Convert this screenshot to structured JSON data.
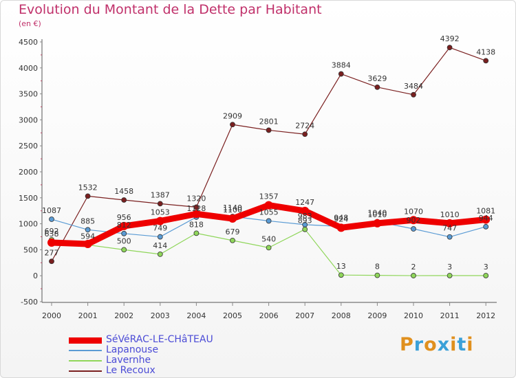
{
  "title": "Evolution du Montant de la Dette par Habitant",
  "subtitle": "(en €)",
  "logo": {
    "text": "Proxiti",
    "colors": [
      "#e0901e",
      "#3aa0d8",
      "#e0901e",
      "#3aa0d8",
      "#e0901e",
      "#3aa0d8",
      "#e0901e"
    ]
  },
  "chart_data": {
    "type": "line",
    "title": "Evolution du Montant de la Dette par Habitant",
    "subtitle": "(en €)",
    "xlabel": "",
    "ylabel": "",
    "x": [
      2000,
      2001,
      2002,
      2003,
      2004,
      2005,
      2006,
      2007,
      2008,
      2009,
      2010,
      2011,
      2012
    ],
    "yticks": [
      -500,
      0,
      500,
      1000,
      1500,
      2000,
      2500,
      3000,
      3500,
      4000,
      4500
    ],
    "ylim": [
      -500,
      4500
    ],
    "grid": false,
    "legend_position": "bottom-left",
    "series": [
      {
        "name": "Le Recoux",
        "color": "#7a1f1f",
        "width": 1.2,
        "values": [
          277,
          1532,
          1458,
          1387,
          1320,
          2909,
          2801,
          2724,
          3884,
          3629,
          3484,
          4392,
          4138
        ]
      },
      {
        "name": "Lapanouse",
        "color": "#5a9bd4",
        "width": 1.2,
        "values": [
          1087,
          885,
          812,
          749,
          1128,
          1140,
          1055,
          983,
          948,
          1040,
          902,
          747,
          944
        ]
      },
      {
        "name": "Lavernhe",
        "color": "#8fd65a",
        "width": 1.2,
        "values": [
          692,
          594,
          500,
          414,
          818,
          679,
          540,
          893,
          13,
          8,
          2,
          3,
          3
        ]
      },
      {
        "name": "SéVéRAC-LE-CHâTEAU",
        "color": "#ee0000",
        "width": 9,
        "values": [
          638,
          611,
          956,
          1053,
          1190,
          1100,
          1357,
          1247,
          924,
          1010,
          1070,
          1010,
          1081
        ]
      }
    ],
    "data_labels": [
      {
        "series": "Le Recoux",
        "labels": [
          "277",
          "1532",
          "1458",
          "1387",
          "1320",
          "2909",
          "2801",
          "2724",
          "3884",
          "3629",
          "3484",
          "4392",
          "4138"
        ]
      },
      {
        "series": "Lapanouse",
        "labels": [
          "1087",
          "885",
          "812",
          "749",
          "1128",
          "1140",
          "1055",
          "983",
          "948",
          "1040",
          "902",
          "747",
          "944"
        ]
      },
      {
        "series": "Lavernhe",
        "labels": [
          "692",
          "594",
          "500",
          "414",
          "818",
          "679",
          "540",
          "893",
          "13",
          "8",
          "2",
          "3",
          "3"
        ]
      },
      {
        "series": "SéVéRAC-LE-CHâTEAU",
        "labels": [
          "638",
          "",
          "956",
          "1053",
          "",
          "1100",
          "1357",
          "1247",
          "924",
          "1010",
          "1070",
          "1010",
          "1081"
        ]
      }
    ]
  },
  "legend": [
    {
      "label": "SéVéRAC-LE-CHâTEAU",
      "color": "#ee0000"
    },
    {
      "label": "Lapanouse",
      "color": "#5a9bd4"
    },
    {
      "label": "Lavernhe",
      "color": "#8fd65a"
    },
    {
      "label": "Le Recoux",
      "color": "#7a1f1f"
    }
  ]
}
